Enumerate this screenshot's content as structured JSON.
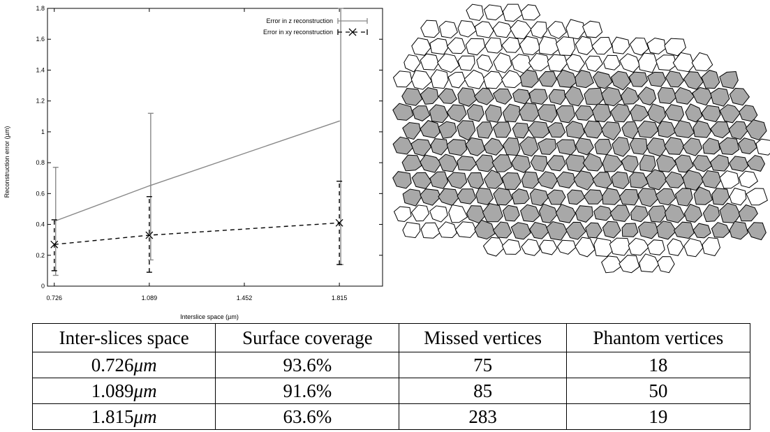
{
  "chart_data": {
    "type": "line",
    "xlabel": "Interslice space (µm)",
    "ylabel": "Reconstruction error (µm)",
    "x_ticks": [
      "0.726",
      "1.089",
      "1.452",
      "1.815"
    ],
    "y_ticks": [
      "0",
      "0.2",
      "0.4",
      "0.6",
      "0.8",
      "1",
      "1.2",
      "1.4",
      "1.6",
      "1.8"
    ],
    "xlim": [
      0.7,
      1.98
    ],
    "ylim": [
      0,
      1.8
    ],
    "grid": false,
    "legend_position": "top-right",
    "series": [
      {
        "name": "Error in z reconstruction",
        "color": "#888888",
        "dash": "solid",
        "marker": "none",
        "x": [
          0.726,
          1.089,
          1.815
        ],
        "y": [
          0.42,
          0.65,
          1.07
        ],
        "err_low": [
          0.07,
          0.17,
          0.14
        ],
        "err_high": [
          0.77,
          1.12,
          1.8
        ]
      },
      {
        "name": "Error in xy reconstruction",
        "color": "#000000",
        "dash": "dashed",
        "marker": "x",
        "x": [
          0.726,
          1.089,
          1.815
        ],
        "y": [
          0.27,
          0.33,
          0.41
        ],
        "err_low": [
          0.1,
          0.09,
          0.14
        ],
        "err_high": [
          0.43,
          0.58,
          0.68
        ]
      }
    ]
  },
  "table": {
    "headers": [
      "Inter-slices space",
      "Surface coverage",
      "Missed vertices",
      "Phantom vertices"
    ],
    "rows": [
      {
        "space": "0.726",
        "unit": "μm",
        "coverage": "93.6%",
        "missed": "75",
        "phantom": "18"
      },
      {
        "space": "1.089",
        "unit": "μm",
        "coverage": "91.6%",
        "missed": "85",
        "phantom": "50"
      },
      {
        "space": "1.815",
        "unit": "μm",
        "coverage": "63.6%",
        "missed": "283",
        "phantom": "19"
      }
    ]
  },
  "mesh_image": {
    "fill_highlight": "#a8a8a8",
    "fill_plain": "#ffffff",
    "stroke": "#000000"
  }
}
